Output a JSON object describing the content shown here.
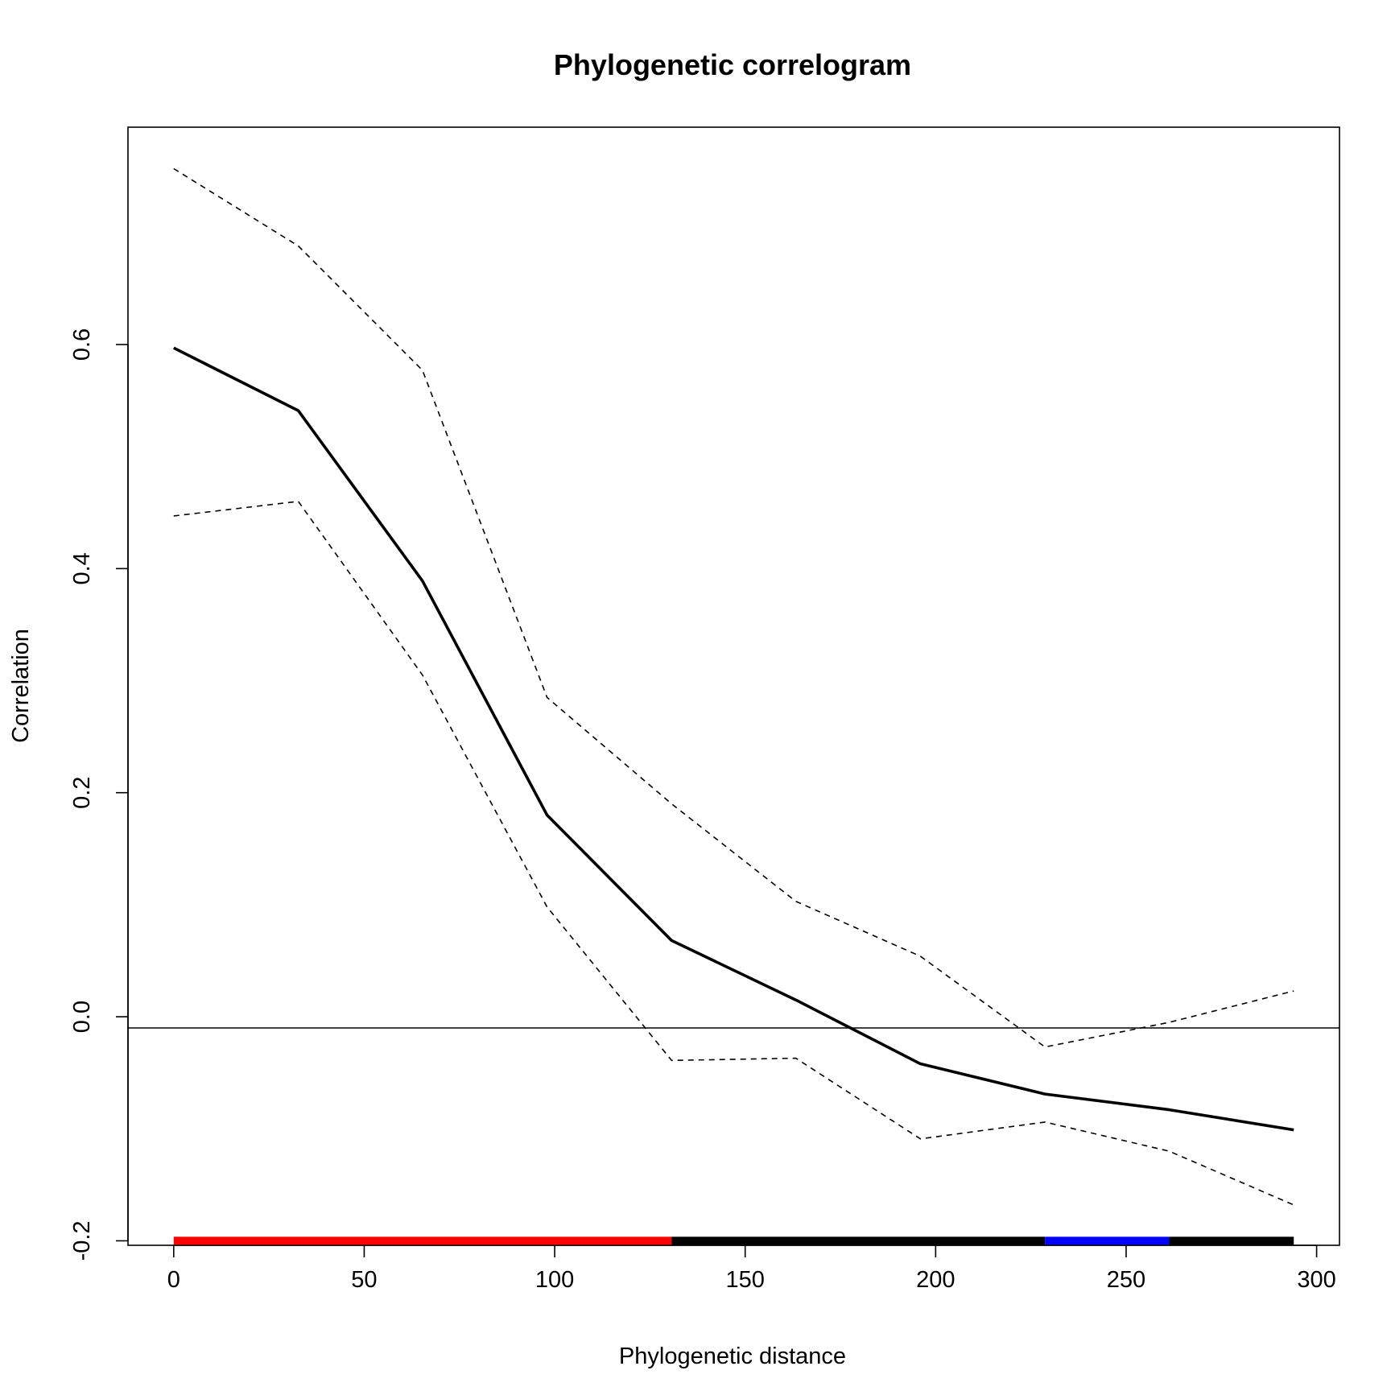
{
  "chart_data": {
    "type": "line",
    "title": "Phylogenetic correlogram",
    "xlabel": "Phylogenetic distance",
    "ylabel": "Correlation",
    "xlim": [
      -12,
      306
    ],
    "ylim": [
      -0.204,
      0.794
    ],
    "x_ticks": [
      0,
      50,
      100,
      150,
      200,
      250,
      300
    ],
    "x_tick_labels": [
      "0",
      "50",
      "100",
      "150",
      "200",
      "250",
      "300"
    ],
    "y_ticks": [
      -0.2,
      0.0,
      0.2,
      0.4,
      0.6
    ],
    "y_tick_labels": [
      "-0.2",
      "0.0",
      "0.2",
      "0.4",
      "0.6"
    ],
    "grid": false,
    "x": [
      0,
      32.7,
      65.3,
      98,
      130.7,
      163.3,
      196,
      228.7,
      261.3,
      294
    ],
    "series": [
      {
        "role": "correlation",
        "values": [
          0.597,
          0.541,
          0.389,
          0.18,
          0.068,
          0.015,
          -0.042,
          -0.069,
          -0.083,
          -0.101
        ]
      },
      {
        "role": "upper-confidence",
        "values": [
          0.757,
          0.688,
          0.577,
          0.285,
          0.19,
          0.103,
          0.054,
          -0.027,
          -0.005,
          0.023
        ]
      },
      {
        "role": "lower-confidence",
        "values": [
          0.447,
          0.46,
          0.305,
          0.098,
          -0.039,
          -0.037,
          -0.109,
          -0.094,
          -0.12,
          -0.168
        ]
      }
    ],
    "reference_line_y": -0.01,
    "significance_bar": {
      "y": -0.2,
      "segments": [
        {
          "from": 0,
          "to": 130.7,
          "color": "#ff0000"
        },
        {
          "from": 130.7,
          "to": 228.7,
          "color": "#000000"
        },
        {
          "from": 228.7,
          "to": 261.3,
          "color": "#0000ff"
        },
        {
          "from": 261.3,
          "to": 294,
          "color": "#000000"
        }
      ]
    }
  }
}
